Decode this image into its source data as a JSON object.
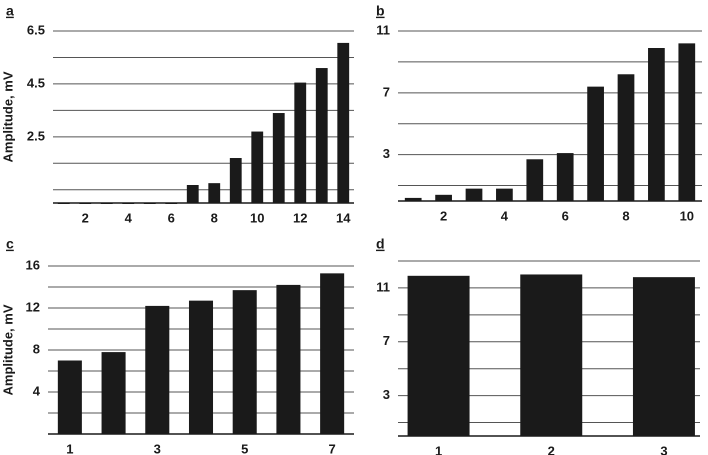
{
  "chart_data": [
    {
      "type": "bar",
      "panel_label": "a",
      "ylabel": "Amplitude, mV",
      "x": [
        1,
        2,
        3,
        4,
        5,
        6,
        7,
        8,
        9,
        10,
        11,
        12,
        13,
        14
      ],
      "values": [
        0,
        0,
        0,
        0,
        0,
        0,
        0.68,
        0.75,
        1.7,
        2.7,
        3.4,
        4.55,
        5.1,
        6.05
      ],
      "color": "#1a1a1a",
      "xlim": [
        0.5,
        14.5
      ],
      "xticks": [
        2,
        4,
        6,
        8,
        10,
        12,
        14
      ],
      "ylim": [
        0,
        6.5
      ],
      "yticks": [
        2.5,
        4.5,
        6.5
      ],
      "minor_yticks": [
        0.5,
        1.5,
        3.5,
        5.5
      ],
      "grid": true
    },
    {
      "type": "bar",
      "panel_label": "b",
      "x": [
        1,
        2,
        3,
        4,
        5,
        6,
        7,
        8,
        9,
        10
      ],
      "values": [
        0.2,
        0.4,
        0.8,
        0.8,
        2.7,
        3.1,
        7.4,
        8.2,
        9.9,
        10.2
      ],
      "color": "#1a1a1a",
      "xlim": [
        0.5,
        10.5
      ],
      "xticks": [
        2,
        4,
        6,
        8,
        10
      ],
      "ylim": [
        0,
        11
      ],
      "yticks": [
        3,
        7,
        11
      ],
      "minor_yticks": [
        1,
        5,
        9
      ],
      "grid": true
    },
    {
      "type": "bar",
      "panel_label": "c",
      "ylabel": "Amplitude, mV",
      "x": [
        1,
        2,
        3,
        4,
        5,
        6,
        7
      ],
      "values": [
        7.0,
        7.8,
        12.2,
        12.7,
        13.7,
        14.2,
        15.3
      ],
      "color": "#1a1a1a",
      "xlim": [
        0.5,
        7.5
      ],
      "xticks": [
        1,
        3,
        5,
        7
      ],
      "ylim": [
        0,
        16
      ],
      "yticks": [
        4,
        8,
        12,
        16
      ],
      "minor_yticks": [
        2,
        6,
        10,
        14
      ],
      "grid": true
    },
    {
      "type": "bar",
      "panel_label": "d",
      "x": [
        1,
        2,
        3
      ],
      "values": [
        11.9,
        12.0,
        11.8
      ],
      "color": "#1a1a1a",
      "xlim": [
        0.64,
        3.32
      ],
      "xticks": [
        1,
        2,
        3
      ],
      "ylim": [
        0,
        13
      ],
      "yticks": [
        3,
        7,
        11
      ],
      "minor_yticks": [
        1,
        5,
        9,
        13
      ],
      "grid": true
    }
  ]
}
